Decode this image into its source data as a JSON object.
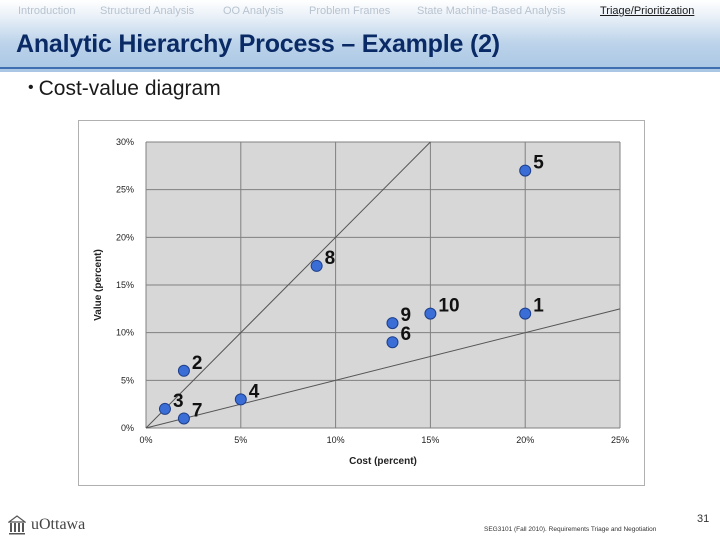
{
  "nav": {
    "tabs": [
      "Introduction",
      "Structured Analysis",
      "OO Analysis",
      "Problem Frames",
      "State Machine-Based Analysis",
      "Triage/Prioritization"
    ],
    "active": 5
  },
  "slide": {
    "title": "Analytic Hierarchy Process – Example (2)",
    "bullet": "Cost-value diagram",
    "footer": "SEG3101 (Fall 2010).  Requirements Triage and Negotiation",
    "page_number": "31",
    "logo_text": "uOttawa"
  },
  "colors": {
    "title": "#0a2a66",
    "rule": "#3f6fb0",
    "point_fill": "#3a6ed6",
    "point_stroke": "#1e3f8a",
    "grid": "#808080"
  },
  "icons": {
    "logo": "building-icon"
  },
  "chart_data": {
    "type": "scatter",
    "xlabel": "Cost (percent)",
    "ylabel": "Value (percent)",
    "xlim": [
      0,
      25
    ],
    "ylim": [
      0,
      30
    ],
    "x_ticks": [
      0,
      5,
      10,
      15,
      20,
      25
    ],
    "y_ticks": [
      0,
      5,
      10,
      15,
      20,
      25,
      30
    ],
    "x_tick_labels": [
      "0%",
      "5%",
      "10%",
      "15%",
      "20%",
      "25%"
    ],
    "y_tick_labels": [
      "0%",
      "5%",
      "10%",
      "15%",
      "20%",
      "25%",
      "30%"
    ],
    "grid": true,
    "points": [
      {
        "label": "1",
        "x": 20,
        "y": 12
      },
      {
        "label": "2",
        "x": 2,
        "y": 6
      },
      {
        "label": "3",
        "x": 1,
        "y": 2
      },
      {
        "label": "4",
        "x": 5,
        "y": 3
      },
      {
        "label": "5",
        "x": 20,
        "y": 27
      },
      {
        "label": "6",
        "x": 13,
        "y": 9
      },
      {
        "label": "7",
        "x": 2,
        "y": 1
      },
      {
        "label": "8",
        "x": 9,
        "y": 17
      },
      {
        "label": "9",
        "x": 13,
        "y": 11
      },
      {
        "label": "10",
        "x": 15,
        "y": 12
      }
    ],
    "reference_lines": [
      {
        "x": [
          0,
          15
        ],
        "y": [
          0,
          30
        ]
      },
      {
        "x": [
          0,
          25
        ],
        "y": [
          0,
          12.5
        ]
      }
    ]
  }
}
